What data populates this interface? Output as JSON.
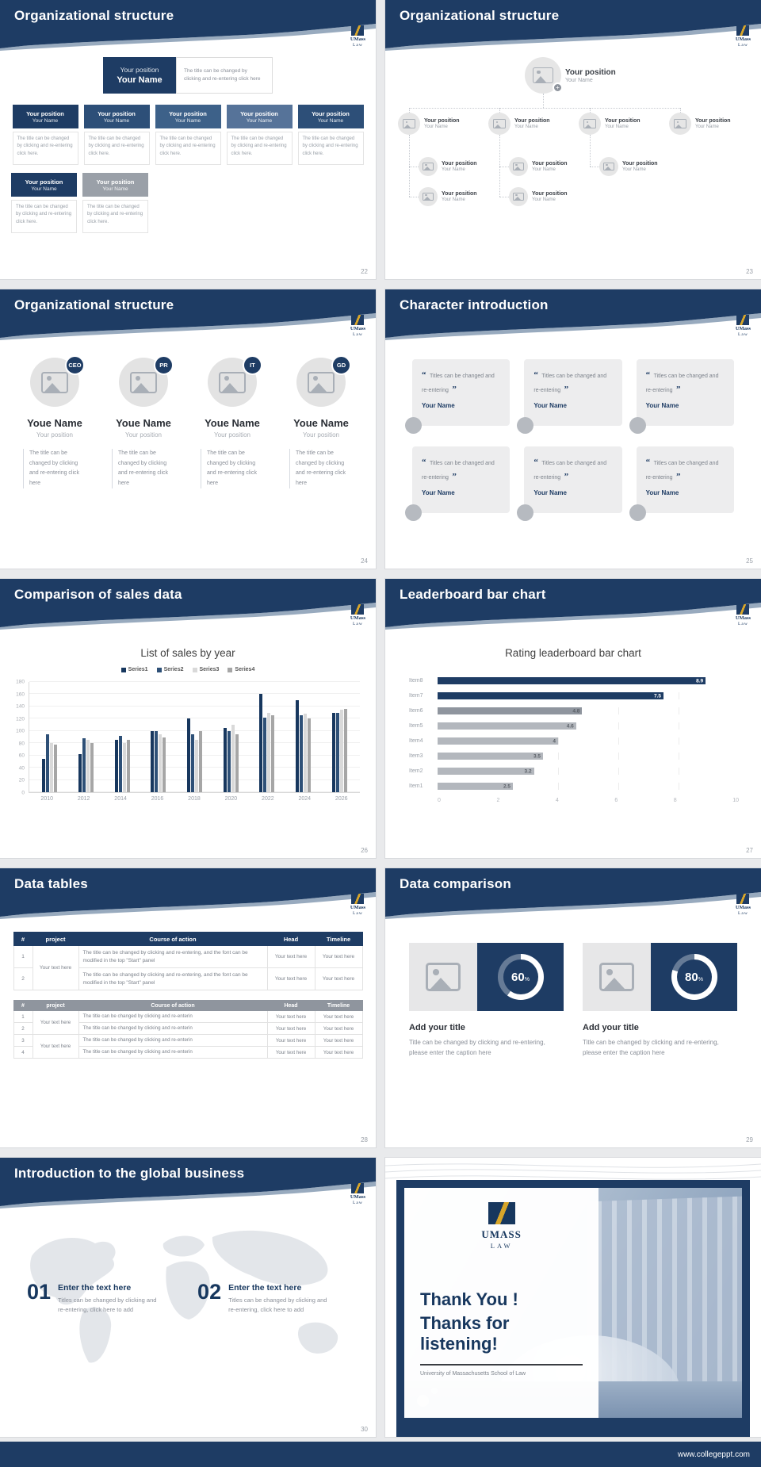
{
  "page": {
    "footer_url": "www.collegeppt.com"
  },
  "brand": {
    "logo_line1": "UMass",
    "logo_line2": "Law",
    "logo_line1_big": "UMASS",
    "logo_line2_big": "LAW"
  },
  "colors": {
    "navy": "#1e3c64",
    "navy_dark": "#17375e",
    "gold": "#d8a62a",
    "gray_bar": "#b3b7bd",
    "card_gray": "#ededee"
  },
  "icons": {
    "quote_open": "“",
    "quote_close": "”"
  },
  "slides": {
    "s22": {
      "title": "Organizational structure",
      "page": "22",
      "box_position": "Your position",
      "box_name": "Your Name",
      "root_note": "The title can be changed by clicking and re-entering click here",
      "box_note": "The title can be changed by clicking and re-entering click here."
    },
    "s23": {
      "title": "Organizational structure",
      "page": "23",
      "position": "Your position",
      "name": "Your Name"
    },
    "s24": {
      "title": "Organizational structure",
      "page": "24",
      "badges": [
        "CEO",
        "PR",
        "IT",
        "GD"
      ],
      "name": "Youe Name",
      "position": "Your position",
      "note": "The title can be changed by clicking and re-entering click here"
    },
    "s25": {
      "title": "Character introduction",
      "page": "25",
      "quote": "Titles can be changed and re-entering",
      "name": "Your Name"
    },
    "s26": {
      "title": "Comparison of sales data",
      "page": "26"
    },
    "s27": {
      "title": "Leaderboard bar chart",
      "page": "27"
    },
    "s28": {
      "title": "Data tables",
      "page": "28",
      "headers": [
        "#",
        "project",
        "Course of action",
        "Head",
        "Timeline"
      ],
      "cell": "Your text here",
      "course_long": "The title can be changed by clicking and re-entering, and the font can be modified in the top \"Start\" panel",
      "course_short": "The title can be changed by clicking and re-enterin",
      "rows_t1": [
        "1",
        "2"
      ],
      "rows_t2": [
        "1",
        "2",
        "3",
        "4"
      ]
    },
    "s29": {
      "title": "Data comparison",
      "page": "29",
      "heading": "Add your title",
      "caption": "Title can be changed by clicking and re-entering, please enter the caption here"
    },
    "s30": {
      "title": "Introduction to the global business",
      "page": "30",
      "items": [
        {
          "num": "01",
          "head": "Enter the text here",
          "body": "Titles can be changed by clicking and re-entering, click here to add"
        },
        {
          "num": "02",
          "head": "Enter the text here",
          "body": "Titles can be changed by clicking and re-entering, click here to add"
        }
      ]
    },
    "s31": {
      "line1": "Thank You !",
      "line2": "Thanks for listening!",
      "sub": "University of Massachusetts School of Law"
    }
  },
  "chart_data": [
    {
      "type": "bar",
      "title": "List of sales by year",
      "categories": [
        "2010",
        "2012",
        "2014",
        "2016",
        "2018",
        "2020",
        "2022",
        "2024",
        "2026"
      ],
      "series": [
        {
          "name": "Series1",
          "color": "#17375e",
          "values": [
            55,
            62,
            85,
            100,
            120,
            105,
            160,
            150,
            130
          ]
        },
        {
          "name": "Series2",
          "color": "#2e5077",
          "values": [
            95,
            88,
            92,
            100,
            95,
            100,
            122,
            125,
            130
          ]
        },
        {
          "name": "Series3",
          "color": "#d9d9d9",
          "values": [
            80,
            85,
            80,
            95,
            85,
            110,
            130,
            128,
            135
          ]
        },
        {
          "name": "Series4",
          "color": "#a6a6a6",
          "values": [
            78,
            80,
            86,
            90,
            100,
            95,
            125,
            120,
            136
          ]
        }
      ],
      "ylim": [
        0,
        180
      ],
      "ytick_step": 20,
      "xlabel": "",
      "ylabel": "",
      "legend_position": "top",
      "grid": true
    },
    {
      "type": "bar",
      "orientation": "horizontal",
      "title": "Rating leaderboard bar chart",
      "categories": [
        "Item8",
        "Item7",
        "Item6",
        "Item5",
        "Item4",
        "Item3",
        "Item2",
        "Item1"
      ],
      "values": [
        8.9,
        7.5,
        4.8,
        4.6,
        4,
        3.5,
        3.2,
        2.5
      ],
      "colors": [
        "#1e3c64",
        "#1e3c64",
        "#8f959e",
        "#b3b7bd",
        "#b3b7bd",
        "#b3b7bd",
        "#b3b7bd",
        "#b3b7bd"
      ],
      "xlim": [
        0,
        10
      ],
      "xticks": [
        0,
        2,
        4,
        6,
        8,
        10
      ],
      "grid": true
    },
    {
      "type": "donut",
      "value": 60,
      "label": "60",
      "unit": "%"
    },
    {
      "type": "donut",
      "value": 80,
      "label": "80",
      "unit": "%"
    }
  ]
}
